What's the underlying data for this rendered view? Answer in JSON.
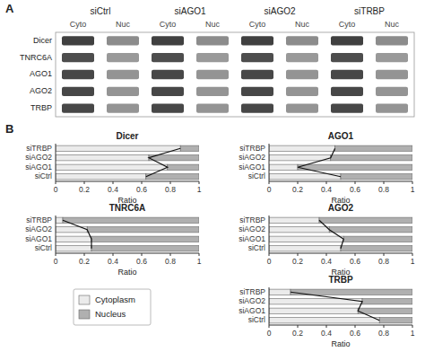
{
  "chart_data": [
    {
      "type": "heatmap",
      "annotations": [
        "A"
      ],
      "groups": [
        "siCtrl",
        "siAGO1",
        "siAGO2",
        "siTRBP"
      ],
      "categories": [
        "Cyto",
        "Nuc",
        "Cyto",
        "Nuc",
        "Cyto",
        "Nuc",
        "Cyto",
        "Nuc"
      ],
      "rows": [
        "Dicer",
        "TNRC6A",
        "AGO1",
        "AGO2",
        "TRBP"
      ],
      "values": [
        [
          0.25,
          0.55,
          0.25,
          0.55,
          0.25,
          0.55,
          0.25,
          0.55
        ],
        [
          0.3,
          0.6,
          0.3,
          0.6,
          0.3,
          0.6,
          0.3,
          0.6
        ],
        [
          0.28,
          0.58,
          0.28,
          0.58,
          0.28,
          0.58,
          0.28,
          0.58
        ],
        [
          0.28,
          0.58,
          0.28,
          0.58,
          0.28,
          0.58,
          0.28,
          0.58
        ],
        [
          0.28,
          0.58,
          0.28,
          0.58,
          0.28,
          0.58,
          0.28,
          0.58
        ]
      ]
    },
    {
      "type": "bar",
      "title": "Dicer",
      "annotations": [
        "B"
      ],
      "orientation": "horizontal",
      "stacked": true,
      "legend": "lower left",
      "categories": [
        "siCtrl",
        "siAGO1",
        "siAGO2",
        "siTRBP"
      ],
      "series": [
        {
          "name": "Cytoplasm",
          "color": "#ebebeb",
          "values": [
            0.63,
            0.78,
            0.65,
            0.87
          ]
        },
        {
          "name": "Nucleus",
          "color": "#b0b0b0",
          "values": [
            0.37,
            0.22,
            0.35,
            0.13
          ]
        }
      ],
      "x_label": "Ratio",
      "xlim": [
        0,
        1
      ],
      "xticks": [
        0,
        0.2,
        0.4,
        0.6,
        0.8,
        1
      ]
    },
    {
      "type": "bar",
      "title": "AGO1",
      "orientation": "horizontal",
      "stacked": true,
      "categories": [
        "siCtrl",
        "siAGO1",
        "siAGO2",
        "siTRBP"
      ],
      "series": [
        {
          "name": "Cytoplasm",
          "color": "#ebebeb",
          "values": [
            0.5,
            0.2,
            0.43,
            0.46
          ]
        },
        {
          "name": "Nucleus",
          "color": "#b0b0b0",
          "values": [
            0.5,
            0.8,
            0.57,
            0.54
          ]
        }
      ],
      "x_label": "Ratio",
      "xlim": [
        0,
        1
      ],
      "xticks": [
        0,
        0.2,
        0.4,
        0.6,
        0.8,
        1
      ]
    },
    {
      "type": "bar",
      "title": "TNRC6A",
      "orientation": "horizontal",
      "stacked": true,
      "categories": [
        "siCtrl",
        "siAGO1",
        "siAGO2",
        "siTRBP"
      ],
      "series": [
        {
          "name": "Cytoplasm",
          "color": "#ebebeb",
          "values": [
            0.25,
            0.25,
            0.22,
            0.05
          ]
        },
        {
          "name": "Nucleus",
          "color": "#b0b0b0",
          "values": [
            0.75,
            0.75,
            0.78,
            0.95
          ]
        }
      ],
      "x_label": "Ratio",
      "xlim": [
        0,
        1
      ],
      "xticks": [
        0,
        0.2,
        0.4,
        0.6,
        0.8,
        1
      ]
    },
    {
      "type": "bar",
      "title": "AGO2",
      "orientation": "horizontal",
      "stacked": true,
      "categories": [
        "siCtrl",
        "siAGO1",
        "siAGO2",
        "siTRBP"
      ],
      "series": [
        {
          "name": "Cytoplasm",
          "color": "#ebebeb",
          "values": [
            0.5,
            0.52,
            0.42,
            0.35
          ]
        },
        {
          "name": "Nucleus",
          "color": "#b0b0b0",
          "values": [
            0.5,
            0.48,
            0.58,
            0.65
          ]
        }
      ],
      "x_label": "Ratio",
      "xlim": [
        0,
        1
      ],
      "xticks": [
        0,
        0.2,
        0.4,
        0.6,
        0.8,
        1
      ]
    },
    {
      "type": "bar",
      "title": "TRBP",
      "orientation": "horizontal",
      "stacked": true,
      "categories": [
        "siCtrl",
        "siAGO1",
        "siAGO2",
        "siTRBP"
      ],
      "series": [
        {
          "name": "Cytoplasm",
          "color": "#ebebeb",
          "values": [
            0.77,
            0.62,
            0.65,
            0.15
          ]
        },
        {
          "name": "Nucleus",
          "color": "#b0b0b0",
          "values": [
            0.23,
            0.38,
            0.35,
            0.85
          ]
        }
      ],
      "x_label": "Ratio",
      "xlim": [
        0,
        1
      ],
      "xticks": [
        0,
        0.2,
        0.4,
        0.6,
        0.8,
        1
      ]
    }
  ]
}
